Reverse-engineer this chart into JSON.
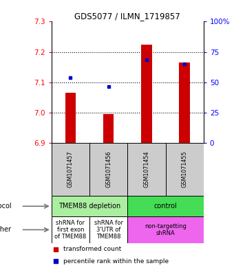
{
  "title": "GDS5077 / ILMN_1719857",
  "samples": [
    "GSM1071457",
    "GSM1071456",
    "GSM1071454",
    "GSM1071455"
  ],
  "red_values": [
    7.065,
    6.995,
    7.225,
    7.165
  ],
  "blue_values": [
    7.115,
    7.085,
    7.175,
    7.16
  ],
  "y_min": 6.9,
  "y_max": 7.3,
  "y_ticks": [
    6.9,
    7.0,
    7.1,
    7.2,
    7.3
  ],
  "right_ticks": [
    0,
    25,
    50,
    75,
    100
  ],
  "right_tick_labels": [
    "0",
    "25",
    "50",
    "75",
    "100%"
  ],
  "protocol_labels": [
    "TMEM88 depletion",
    "control"
  ],
  "protocol_colors": [
    "#aaeea0",
    "#44dd55"
  ],
  "other_labels": [
    "shRNA for\nfirst exon\nof TMEM88",
    "shRNA for\n3'UTR of\nTMEM88",
    "non-targetting\nshRNA"
  ],
  "other_colors_left": "#ffffff",
  "other_color_right": "#ee66ee",
  "bar_color": "#cc0000",
  "dot_color": "#0000cc",
  "sample_bg": "#cccccc",
  "legend_bar_color": "#cc0000",
  "legend_dot_color": "#0000cc"
}
